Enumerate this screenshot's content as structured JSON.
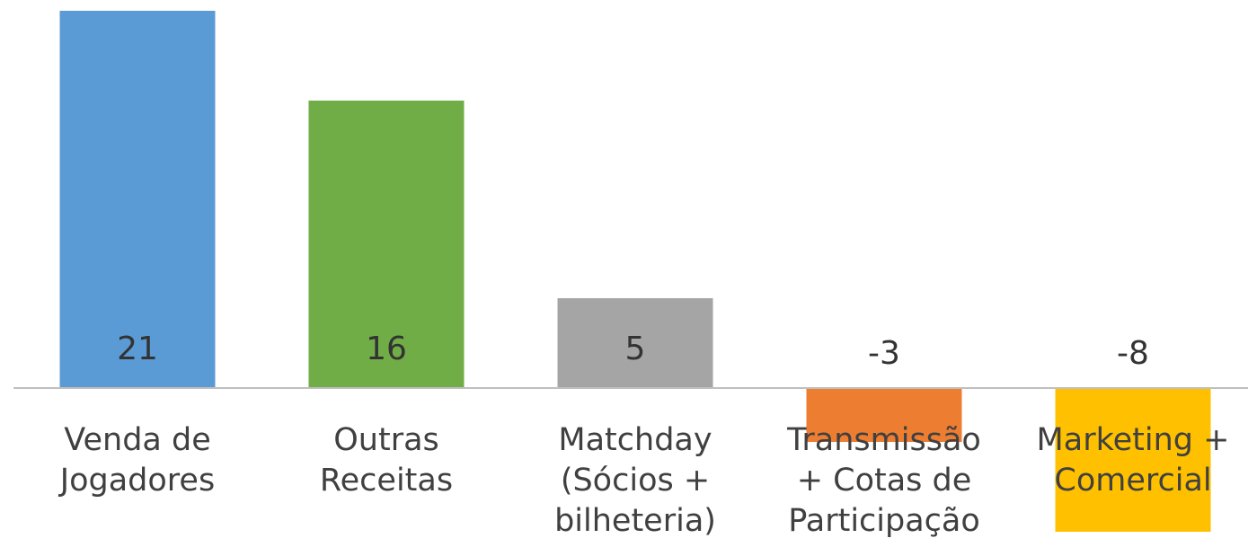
{
  "chart_data": {
    "type": "bar",
    "categories": [
      "Venda de Jogadores",
      "Outras Receitas",
      "Matchday (Sócios + bilheteria)",
      "Transmissão + Cotas de Participação",
      "Marketing + Comercial"
    ],
    "values": [
      21,
      16,
      5,
      -3,
      -8
    ],
    "colors": [
      "#5b9bd5",
      "#70ad47",
      "#a5a5a5",
      "#ed7d31",
      "#ffc000"
    ]
  }
}
